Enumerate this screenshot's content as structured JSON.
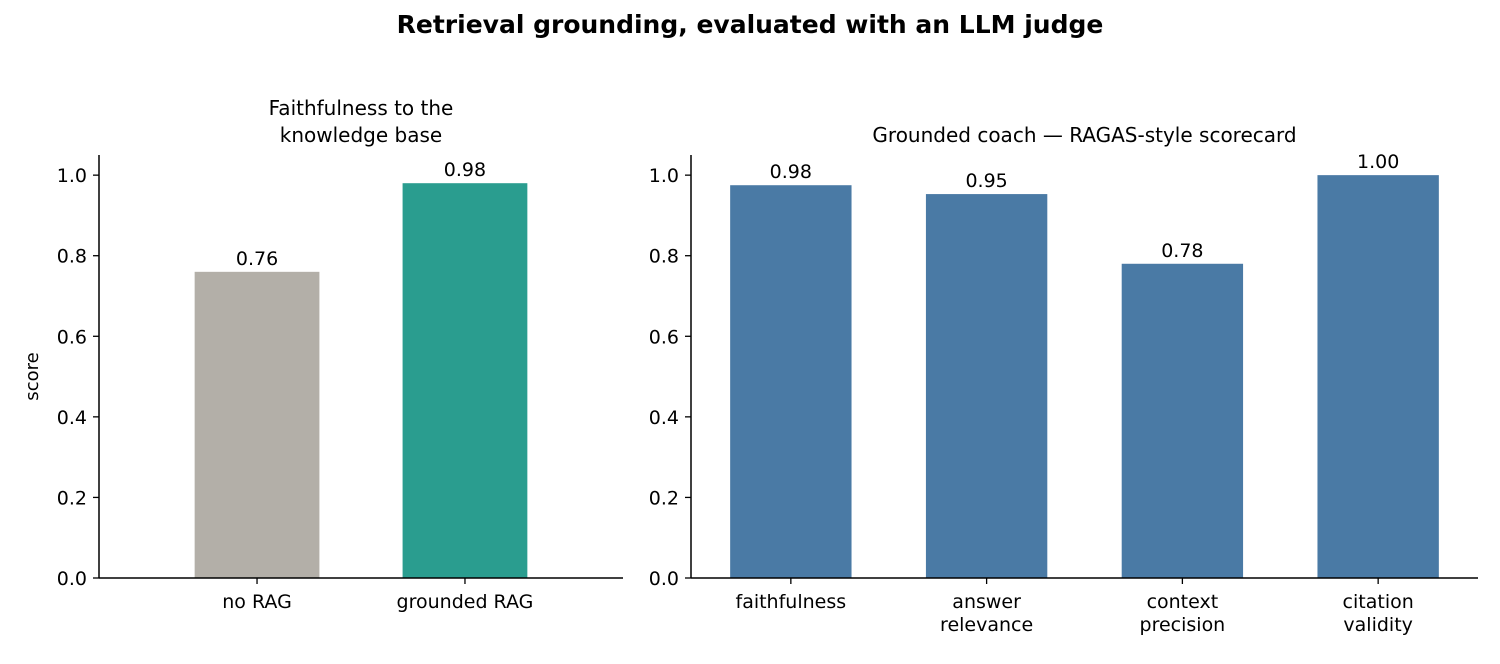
{
  "figure": {
    "suptitle": "Retrieval grounding, evaluated with an LLM judge"
  },
  "chart_data": [
    {
      "type": "bar",
      "title": "Faithfulness to the\nknowledge base",
      "ylabel": "score",
      "xlabel": "",
      "ylim": [
        0,
        1.05
      ],
      "yticks": [
        "0.0",
        "0.2",
        "0.4",
        "0.6",
        "0.8",
        "1.0"
      ],
      "categories": [
        "no RAG",
        "grounded RAG"
      ],
      "values": [
        0.76,
        0.98
      ],
      "value_labels": [
        "0.76",
        "0.98"
      ],
      "colors": [
        "#b3afa8",
        "#2a9d8f"
      ],
      "grid": false,
      "legend": "none"
    },
    {
      "type": "bar",
      "title": "Grounded coach — RAGAS-style scorecard",
      "ylabel": "",
      "xlabel": "",
      "ylim": [
        0,
        1.05
      ],
      "yticks": [
        "0.0",
        "0.2",
        "0.4",
        "0.6",
        "0.8",
        "1.0"
      ],
      "categories": [
        "faithfulness",
        "answer\nrelevance",
        "context\nprecision",
        "citation\nvalidity"
      ],
      "values": [
        0.975,
        0.953,
        0.78,
        1.0
      ],
      "value_labels": [
        "0.98",
        "0.95",
        "0.78",
        "1.00"
      ],
      "colors": [
        "#4a7aa5",
        "#4a7aa5",
        "#4a7aa5",
        "#4a7aa5"
      ],
      "grid": false,
      "legend": "none"
    }
  ]
}
